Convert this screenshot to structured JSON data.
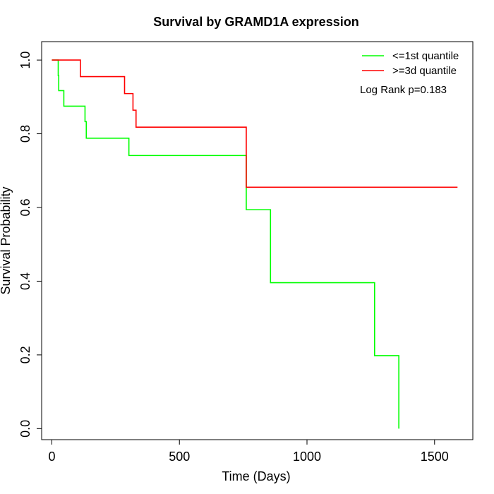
{
  "chart_data": {
    "type": "line",
    "title": "Survival by GRAMD1A expression",
    "xlabel": "Time (Days)",
    "ylabel": "Survival Probability",
    "xlim": [
      -40,
      1650
    ],
    "ylim": [
      -0.03,
      1.05
    ],
    "x_ticks": [
      0,
      500,
      1000,
      1500
    ],
    "y_ticks": [
      0.0,
      0.2,
      0.4,
      0.6,
      0.8,
      1.0
    ],
    "x_tick_labels": [
      "0",
      "500",
      "1000",
      "1500"
    ],
    "y_tick_labels": [
      "0.0",
      "0.2",
      "0.4",
      "0.6",
      "0.8",
      "1.0"
    ],
    "grid": false,
    "legend_position": "top-right",
    "annotation": "Log Rank p=0.183",
    "series": [
      {
        "name": "<=1st quantile",
        "color": "#00ff00",
        "step": true,
        "x": [
          0,
          25,
          27,
          47,
          130,
          135,
          302,
          762,
          857,
          1265,
          1360,
          1360
        ],
        "y": [
          1.0,
          0.958,
          0.917,
          0.875,
          0.833,
          0.788,
          0.741,
          0.594,
          0.396,
          0.198,
          0.198,
          0.0
        ]
      },
      {
        "name": ">=3d quantile",
        "color": "#ff0000",
        "step": true,
        "x": [
          0,
          112,
          285,
          318,
          330,
          762,
          1590
        ],
        "y": [
          1.0,
          0.955,
          0.909,
          0.864,
          0.818,
          0.655,
          0.655
        ]
      }
    ]
  }
}
